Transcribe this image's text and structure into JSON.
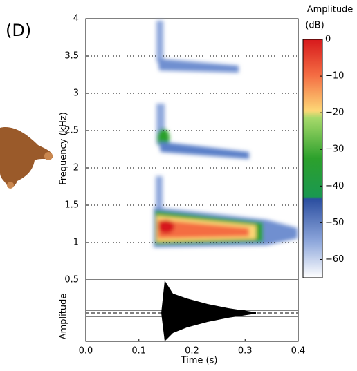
{
  "chart_data": {
    "type": "spectrogram",
    "panel_label": "(D)",
    "y_label": "Frequency (kHz)",
    "x_label": "Time (s)",
    "waveform_label": "Amplitude",
    "colorbar_label": "Amplitude",
    "colorbar_unit": "(dB)",
    "xlim": [
      0,
      0.4
    ],
    "xticks": [
      {
        "value": 0,
        "label": "0.0"
      },
      0.1,
      0.2,
      0.3,
      0.4
    ],
    "ylim": [
      0.5,
      4
    ],
    "yticks": [
      0.5,
      1,
      1.5,
      2,
      2.5,
      3,
      3.5,
      4
    ],
    "grid": true,
    "clim": [
      -65,
      0
    ],
    "cticks": [
      0,
      {
        "value": -10,
        "label": "−10"
      },
      {
        "value": -20,
        "label": "−20"
      },
      {
        "value": -30,
        "label": "−30"
      },
      {
        "value": -40,
        "label": "−40"
      },
      {
        "value": -50,
        "label": "−50"
      },
      {
        "value": -60,
        "label": "−60"
      }
    ]
  }
}
